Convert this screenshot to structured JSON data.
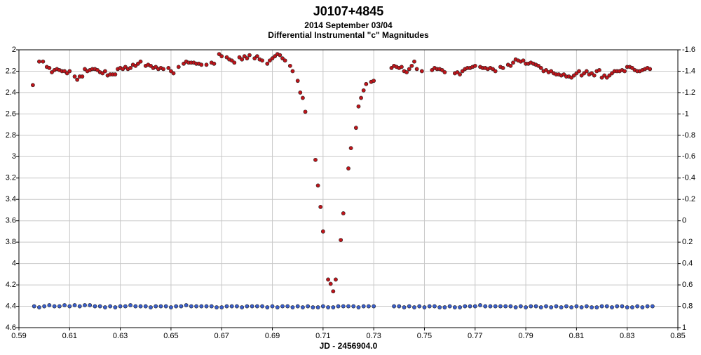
{
  "chart_data": {
    "type": "scatter",
    "title": "J0107+4845",
    "subtitle": "2014 September 03/04",
    "subtitle2": "Differential Instrumental \"c\" Magnitudes",
    "xlabel": "JD - 2456904.0",
    "xlim": [
      0.59,
      0.85
    ],
    "xticks": [
      0.59,
      0.61,
      0.63,
      0.65,
      0.67,
      0.69,
      0.71,
      0.73,
      0.75,
      0.77,
      0.79,
      0.81,
      0.83,
      0.85
    ],
    "ylim": [
      4.6,
      2
    ],
    "yticks": [
      2,
      2.2,
      2.4,
      2.6,
      2.8,
      3,
      3.2,
      3.4,
      3.6,
      3.8,
      4,
      4.2,
      4.4,
      4.6
    ],
    "y2lim": [
      1,
      -1.6
    ],
    "y2ticks": [
      -1.6,
      -1.4,
      -1.2,
      -1,
      -0.8,
      -0.6,
      -0.4,
      -0.2,
      0,
      0.2,
      0.4,
      0.6,
      0.8,
      1
    ],
    "grid": true,
    "series": [
      {
        "color": "#c0141a",
        "x": [
          0.5955,
          0.598,
          0.5995,
          0.601,
          0.602,
          0.603,
          0.604,
          0.605,
          0.606,
          0.607,
          0.608,
          0.609,
          0.61,
          0.612,
          0.613,
          0.614,
          0.615,
          0.616,
          0.617,
          0.618,
          0.619,
          0.62,
          0.621,
          0.622,
          0.623,
          0.624,
          0.625,
          0.626,
          0.627,
          0.628,
          0.629,
          0.63,
          0.631,
          0.632,
          0.633,
          0.634,
          0.635,
          0.636,
          0.637,
          0.638,
          0.64,
          0.641,
          0.642,
          0.643,
          0.644,
          0.645,
          0.646,
          0.647,
          0.649,
          0.65,
          0.651,
          0.653,
          0.655,
          0.656,
          0.657,
          0.658,
          0.659,
          0.66,
          0.661,
          0.662,
          0.664,
          0.666,
          0.667,
          0.669,
          0.67,
          0.672,
          0.673,
          0.674,
          0.675,
          0.677,
          0.678,
          0.679,
          0.68,
          0.681,
          0.683,
          0.684,
          0.685,
          0.686,
          0.688,
          0.689,
          0.69,
          0.691,
          0.692,
          0.693,
          0.694,
          0.695,
          0.697,
          0.698,
          0.7,
          0.701,
          0.702,
          0.703,
          0.707,
          0.708,
          0.709,
          0.71,
          0.712,
          0.713,
          0.714,
          0.715,
          0.717,
          0.718,
          0.72,
          0.721,
          0.723,
          0.724,
          0.725,
          0.726,
          0.727,
          0.729,
          0.73,
          0.737,
          0.738,
          0.739,
          0.74,
          0.741,
          0.742,
          0.743,
          0.744,
          0.745,
          0.746,
          0.747,
          0.749,
          0.753,
          0.754,
          0.755,
          0.756,
          0.757,
          0.758,
          0.762,
          0.763,
          0.764,
          0.765,
          0.766,
          0.767,
          0.768,
          0.769,
          0.77,
          0.772,
          0.773,
          0.774,
          0.775,
          0.776,
          0.777,
          0.778,
          0.78,
          0.781,
          0.783,
          0.784,
          0.785,
          0.786,
          0.787,
          0.788,
          0.789,
          0.79,
          0.791,
          0.792,
          0.793,
          0.794,
          0.795,
          0.796,
          0.797,
          0.798,
          0.799,
          0.8,
          0.801,
          0.802,
          0.803,
          0.804,
          0.805,
          0.806,
          0.807,
          0.808,
          0.809,
          0.81,
          0.811,
          0.812,
          0.813,
          0.814,
          0.815,
          0.816,
          0.817,
          0.818,
          0.819,
          0.82,
          0.821,
          0.822,
          0.823,
          0.824,
          0.825,
          0.826,
          0.827,
          0.828,
          0.829,
          0.83,
          0.831,
          0.832,
          0.833,
          0.834,
          0.835,
          0.836,
          0.837,
          0.838,
          0.839
        ],
        "values": [
          2.33,
          2.11,
          2.11,
          2.16,
          2.17,
          2.21,
          2.19,
          2.18,
          2.19,
          2.2,
          2.2,
          2.22,
          2.2,
          2.25,
          2.28,
          2.25,
          2.25,
          2.18,
          2.2,
          2.19,
          2.18,
          2.18,
          2.19,
          2.21,
          2.22,
          2.2,
          2.24,
          2.23,
          2.23,
          2.23,
          2.18,
          2.17,
          2.18,
          2.16,
          2.18,
          2.17,
          2.14,
          2.15,
          2.13,
          2.11,
          2.15,
          2.14,
          2.15,
          2.17,
          2.16,
          2.18,
          2.17,
          2.18,
          2.17,
          2.2,
          2.22,
          2.16,
          2.13,
          2.11,
          2.12,
          2.12,
          2.12,
          2.13,
          2.13,
          2.14,
          2.14,
          2.12,
          2.13,
          2.04,
          2.06,
          2.07,
          2.09,
          2.1,
          2.12,
          2.07,
          2.09,
          2.06,
          2.08,
          2.05,
          2.08,
          2.06,
          2.09,
          2.1,
          2.13,
          2.1,
          2.08,
          2.06,
          2.04,
          2.05,
          2.08,
          2.1,
          2.15,
          2.2,
          2.29,
          2.4,
          2.45,
          2.58,
          3.03,
          3.27,
          3.47,
          3.7,
          4.15,
          4.19,
          4.26,
          4.15,
          3.78,
          3.53,
          3.11,
          2.92,
          2.73,
          2.53,
          2.45,
          2.38,
          2.32,
          2.3,
          2.29,
          2.17,
          2.15,
          2.16,
          2.17,
          2.16,
          2.2,
          2.21,
          2.18,
          2.15,
          2.11,
          2.18,
          2.2,
          2.19,
          2.17,
          2.18,
          2.18,
          2.19,
          2.21,
          2.22,
          2.21,
          2.23,
          2.2,
          2.18,
          2.17,
          2.17,
          2.16,
          2.15,
          2.16,
          2.17,
          2.17,
          2.18,
          2.17,
          2.18,
          2.2,
          2.16,
          2.17,
          2.14,
          2.15,
          2.12,
          2.09,
          2.1,
          2.11,
          2.1,
          2.13,
          2.13,
          2.12,
          2.13,
          2.14,
          2.15,
          2.17,
          2.2,
          2.19,
          2.21,
          2.2,
          2.22,
          2.23,
          2.23,
          2.24,
          2.23,
          2.25,
          2.25,
          2.26,
          2.24,
          2.22,
          2.2,
          2.24,
          2.22,
          2.2,
          2.23,
          2.22,
          2.24,
          2.2,
          2.19,
          2.26,
          2.24,
          2.26,
          2.24,
          2.22,
          2.2,
          2.2,
          2.2,
          2.19,
          2.2,
          2.16,
          2.16,
          2.17,
          2.19,
          2.2,
          2.2,
          2.19,
          2.18,
          2.17,
          2.18
        ]
      },
      {
        "color": "#3a5fcd",
        "x": [
          0.596,
          0.598,
          0.6,
          0.602,
          0.604,
          0.606,
          0.608,
          0.61,
          0.612,
          0.614,
          0.616,
          0.618,
          0.62,
          0.622,
          0.624,
          0.626,
          0.628,
          0.63,
          0.632,
          0.634,
          0.636,
          0.638,
          0.64,
          0.642,
          0.644,
          0.646,
          0.648,
          0.65,
          0.652,
          0.654,
          0.656,
          0.658,
          0.66,
          0.662,
          0.664,
          0.666,
          0.668,
          0.67,
          0.672,
          0.674,
          0.676,
          0.678,
          0.68,
          0.682,
          0.684,
          0.686,
          0.688,
          0.69,
          0.692,
          0.694,
          0.696,
          0.698,
          0.7,
          0.702,
          0.704,
          0.706,
          0.708,
          0.71,
          0.712,
          0.714,
          0.716,
          0.718,
          0.72,
          0.722,
          0.724,
          0.726,
          0.728,
          0.73,
          0.738,
          0.74,
          0.742,
          0.744,
          0.746,
          0.748,
          0.75,
          0.752,
          0.754,
          0.756,
          0.758,
          0.76,
          0.762,
          0.764,
          0.766,
          0.768,
          0.77,
          0.772,
          0.774,
          0.776,
          0.778,
          0.78,
          0.782,
          0.784,
          0.786,
          0.788,
          0.79,
          0.792,
          0.794,
          0.796,
          0.798,
          0.8,
          0.802,
          0.804,
          0.806,
          0.808,
          0.81,
          0.812,
          0.814,
          0.816,
          0.818,
          0.82,
          0.822,
          0.824,
          0.826,
          0.828,
          0.83,
          0.832,
          0.834,
          0.836,
          0.838,
          0.84
        ],
        "values": [
          4.4,
          4.41,
          4.4,
          4.39,
          4.4,
          4.4,
          4.39,
          4.4,
          4.39,
          4.4,
          4.39,
          4.39,
          4.4,
          4.4,
          4.41,
          4.4,
          4.41,
          4.4,
          4.4,
          4.39,
          4.4,
          4.4,
          4.4,
          4.41,
          4.4,
          4.4,
          4.4,
          4.41,
          4.4,
          4.4,
          4.39,
          4.4,
          4.4,
          4.4,
          4.4,
          4.4,
          4.41,
          4.41,
          4.4,
          4.4,
          4.4,
          4.41,
          4.4,
          4.4,
          4.4,
          4.4,
          4.41,
          4.4,
          4.41,
          4.4,
          4.4,
          4.41,
          4.4,
          4.41,
          4.4,
          4.41,
          4.41,
          4.4,
          4.41,
          4.41,
          4.4,
          4.4,
          4.4,
          4.4,
          4.41,
          4.4,
          4.4,
          4.4,
          4.4,
          4.4,
          4.41,
          4.4,
          4.41,
          4.4,
          4.41,
          4.4,
          4.4,
          4.41,
          4.41,
          4.4,
          4.41,
          4.41,
          4.4,
          4.4,
          4.4,
          4.39,
          4.4,
          4.4,
          4.4,
          4.4,
          4.4,
          4.4,
          4.41,
          4.4,
          4.41,
          4.4,
          4.4,
          4.41,
          4.4,
          4.41,
          4.4,
          4.41,
          4.4,
          4.41,
          4.4,
          4.41,
          4.4,
          4.41,
          4.41,
          4.4,
          4.4,
          4.41,
          4.4,
          4.4,
          4.41,
          4.41,
          4.4,
          4.41,
          4.4,
          4.4
        ]
      }
    ]
  }
}
